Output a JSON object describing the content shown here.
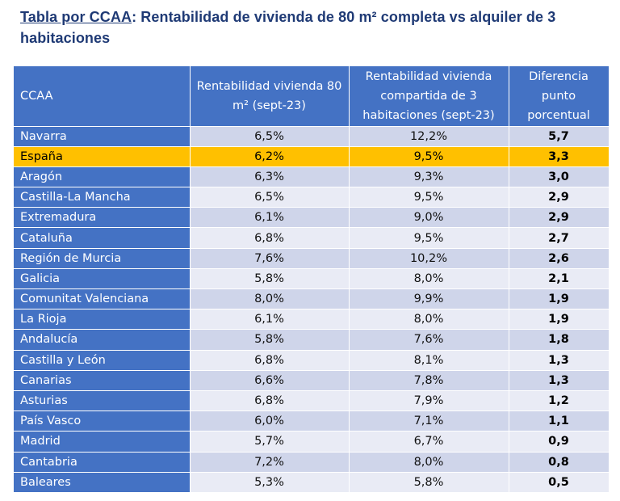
{
  "title": {
    "prefix": "Tabla por CCAA",
    "text": ": Rentabilidad de vivienda de 80 m² completa vs alquiler de 3 habitaciones"
  },
  "table": {
    "headers": [
      "CCAA",
      "Rentabilidad vivienda 80 m² (sept-23)",
      "Rentabilidad vivienda compartida de 3 habitaciones (sept-23)",
      "Diferencia punto porcentual"
    ],
    "rows": [
      {
        "ccaa": "Navarra",
        "completa": "6,5%",
        "compartida": "12,2%",
        "diferencia": "5,7"
      },
      {
        "ccaa": "España",
        "completa": "6,2%",
        "compartida": "9,5%",
        "diferencia": "3,3"
      },
      {
        "ccaa": "Aragón",
        "completa": "6,3%",
        "compartida": "9,3%",
        "diferencia": "3,0"
      },
      {
        "ccaa": "Castilla-La Mancha",
        "completa": "6,5%",
        "compartida": "9,5%",
        "diferencia": "2,9"
      },
      {
        "ccaa": "Extremadura",
        "completa": "6,1%",
        "compartida": "9,0%",
        "diferencia": "2,9"
      },
      {
        "ccaa": "Cataluña",
        "completa": "6,8%",
        "compartida": "9,5%",
        "diferencia": "2,7"
      },
      {
        "ccaa": "Región de Murcia",
        "completa": "7,6%",
        "compartida": "10,2%",
        "diferencia": "2,6"
      },
      {
        "ccaa": "Galicia",
        "completa": "5,8%",
        "compartida": "8,0%",
        "diferencia": "2,1"
      },
      {
        "ccaa": "Comunitat Valenciana",
        "completa": "8,0%",
        "compartida": "9,9%",
        "diferencia": "1,9"
      },
      {
        "ccaa": "La Rioja",
        "completa": "6,1%",
        "compartida": "8,0%",
        "diferencia": "1,9"
      },
      {
        "ccaa": "Andalucía",
        "completa": "5,8%",
        "compartida": "7,6%",
        "diferencia": "1,8"
      },
      {
        "ccaa": "Castilla y León",
        "completa": "6,8%",
        "compartida": "8,1%",
        "diferencia": "1,3"
      },
      {
        "ccaa": "Canarias",
        "completa": "6,6%",
        "compartida": "7,8%",
        "diferencia": "1,3"
      },
      {
        "ccaa": "Asturias",
        "completa": "6,8%",
        "compartida": "7,9%",
        "diferencia": "1,2"
      },
      {
        "ccaa": "País Vasco",
        "completa": "6,0%",
        "compartida": "7,1%",
        "diferencia": "1,1"
      },
      {
        "ccaa": "Madrid",
        "completa": "5,7%",
        "compartida": "6,7%",
        "diferencia": "0,9"
      },
      {
        "ccaa": "Cantabria",
        "completa": "7,2%",
        "compartida": "8,0%",
        "diferencia": "0,8"
      },
      {
        "ccaa": "Baleares",
        "completa": "5,3%",
        "compartida": "5,8%",
        "diferencia": "0,5"
      }
    ]
  },
  "colors": {
    "header_bg": "#4472c4",
    "row_band_dark": "#cfd5ea",
    "row_band_light": "#e9ebf5",
    "highlight": "#ffc000",
    "title_color": "#1f3a75"
  }
}
